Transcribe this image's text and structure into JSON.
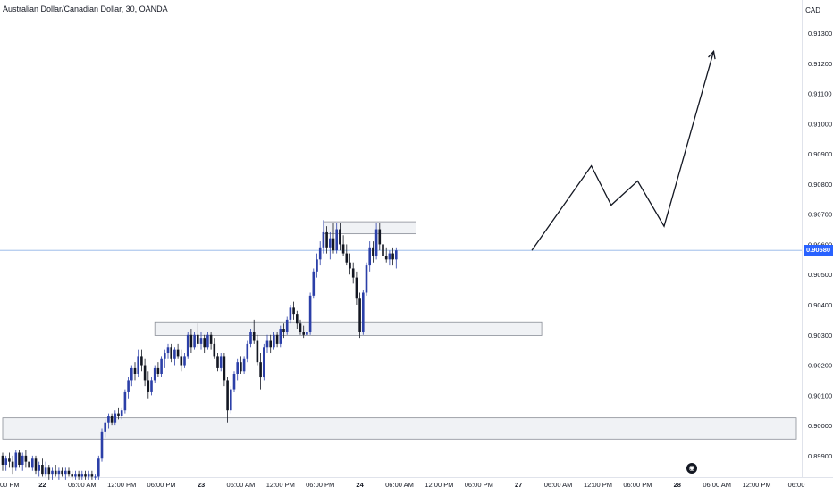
{
  "title": "Australian Dollar/Canadian Dollar, 30, OANDA",
  "currency": "CAD",
  "last_price_label": "0.90580",
  "colors": {
    "up_candle": "#2b3fa8",
    "down_candle": "#131722",
    "zone_fill": "#eceff3",
    "zone_stroke": "#8a8e97",
    "price_line": "#90b4e6",
    "price_tag": "#2962ff"
  },
  "chart_data": {
    "type": "candlestick",
    "symbol": "AUDCAD",
    "interval": "30",
    "ylim": [
      0.8987,
      0.9138
    ],
    "y_ticks": [
      "0.91300",
      "0.91200",
      "0.91100",
      "0.91000",
      "0.90900",
      "0.90800",
      "0.90700",
      "0.90600",
      "0.90500",
      "0.90400",
      "0.90300",
      "0.90200",
      "0.90100",
      "0.90000",
      "0.89900"
    ],
    "y_tick_values": [
      0.913,
      0.912,
      0.911,
      0.91,
      0.909,
      0.908,
      0.907,
      0.906,
      0.905,
      0.904,
      0.903,
      0.902,
      0.901,
      0.9,
      0.899
    ],
    "x_ticks": [
      "00 PM",
      "22",
      "06:00 AM",
      "12:00 PM",
      "06:00 PM",
      "23",
      "06:00 AM",
      "12:00 PM",
      "06:00 PM",
      "24",
      "06:00 AM",
      "12:00 PM",
      "06:00 PM",
      "27",
      "06:00 AM",
      "12:00 PM",
      "06:00 PM",
      "28",
      "06:00 AM",
      "12:00 PM",
      "06:00"
    ],
    "x_tick_index": [
      0,
      12,
      24,
      36,
      48,
      60,
      72,
      84,
      96,
      108,
      120,
      132,
      144,
      156,
      168,
      180,
      192,
      204,
      216,
      228,
      240
    ],
    "candles": [
      {
        "o": 0.899,
        "h": 0.8991,
        "l": 0.8985,
        "c": 0.8987
      },
      {
        "o": 0.8987,
        "h": 0.899,
        "l": 0.8985,
        "c": 0.8989
      },
      {
        "o": 0.8989,
        "h": 0.8991,
        "l": 0.8986,
        "c": 0.8988
      },
      {
        "o": 0.8988,
        "h": 0.899,
        "l": 0.8984,
        "c": 0.8986
      },
      {
        "o": 0.8986,
        "h": 0.8992,
        "l": 0.8985,
        "c": 0.8991
      },
      {
        "o": 0.8991,
        "h": 0.8992,
        "l": 0.8986,
        "c": 0.8987
      },
      {
        "o": 0.8987,
        "h": 0.8991,
        "l": 0.8985,
        "c": 0.899
      },
      {
        "o": 0.899,
        "h": 0.8992,
        "l": 0.8986,
        "c": 0.8988
      },
      {
        "o": 0.8988,
        "h": 0.8989,
        "l": 0.8984,
        "c": 0.8986
      },
      {
        "o": 0.8986,
        "h": 0.899,
        "l": 0.8985,
        "c": 0.8989
      },
      {
        "o": 0.8989,
        "h": 0.899,
        "l": 0.8984,
        "c": 0.8985
      },
      {
        "o": 0.8985,
        "h": 0.8988,
        "l": 0.8983,
        "c": 0.8987
      },
      {
        "o": 0.8987,
        "h": 0.8989,
        "l": 0.8983,
        "c": 0.8984
      },
      {
        "o": 0.8984,
        "h": 0.8988,
        "l": 0.8983,
        "c": 0.8986
      },
      {
        "o": 0.8986,
        "h": 0.8987,
        "l": 0.8982,
        "c": 0.8984
      },
      {
        "o": 0.8984,
        "h": 0.8986,
        "l": 0.8982,
        "c": 0.8985
      },
      {
        "o": 0.8985,
        "h": 0.8987,
        "l": 0.8983,
        "c": 0.8984
      },
      {
        "o": 0.8984,
        "h": 0.8986,
        "l": 0.8982,
        "c": 0.8985
      },
      {
        "o": 0.8985,
        "h": 0.8986,
        "l": 0.8983,
        "c": 0.8984
      },
      {
        "o": 0.8984,
        "h": 0.8986,
        "l": 0.8982,
        "c": 0.8985
      },
      {
        "o": 0.8985,
        "h": 0.8986,
        "l": 0.8983,
        "c": 0.8984
      },
      {
        "o": 0.8984,
        "h": 0.8985,
        "l": 0.8982,
        "c": 0.8983
      },
      {
        "o": 0.8983,
        "h": 0.8985,
        "l": 0.8982,
        "c": 0.8984
      },
      {
        "o": 0.8984,
        "h": 0.8985,
        "l": 0.8982,
        "c": 0.8983
      },
      {
        "o": 0.8983,
        "h": 0.8985,
        "l": 0.8982,
        "c": 0.8984
      },
      {
        "o": 0.8984,
        "h": 0.8985,
        "l": 0.8982,
        "c": 0.8983
      },
      {
        "o": 0.8983,
        "h": 0.8985,
        "l": 0.8982,
        "c": 0.8984
      },
      {
        "o": 0.8984,
        "h": 0.8985,
        "l": 0.8982,
        "c": 0.8983
      },
      {
        "o": 0.8983,
        "h": 0.8984,
        "l": 0.8982,
        "c": 0.8983
      },
      {
        "o": 0.8983,
        "h": 0.899,
        "l": 0.8982,
        "c": 0.8989
      },
      {
        "o": 0.8989,
        "h": 0.8999,
        "l": 0.8988,
        "c": 0.8998
      },
      {
        "o": 0.8998,
        "h": 0.9002,
        "l": 0.8996,
        "c": 0.9001
      },
      {
        "o": 0.9001,
        "h": 0.9004,
        "l": 0.8999,
        "c": 0.9003
      },
      {
        "o": 0.9003,
        "h": 0.9004,
        "l": 0.9,
        "c": 0.9001
      },
      {
        "o": 0.9001,
        "h": 0.9005,
        "l": 0.9,
        "c": 0.9004
      },
      {
        "o": 0.9004,
        "h": 0.9006,
        "l": 0.9002,
        "c": 0.9003
      },
      {
        "o": 0.9003,
        "h": 0.9006,
        "l": 0.9002,
        "c": 0.9005
      },
      {
        "o": 0.9005,
        "h": 0.9012,
        "l": 0.9004,
        "c": 0.9011
      },
      {
        "o": 0.9011,
        "h": 0.9016,
        "l": 0.9009,
        "c": 0.9015
      },
      {
        "o": 0.9015,
        "h": 0.902,
        "l": 0.9013,
        "c": 0.9019
      },
      {
        "o": 0.9019,
        "h": 0.9021,
        "l": 0.9015,
        "c": 0.9017
      },
      {
        "o": 0.9017,
        "h": 0.9025,
        "l": 0.9016,
        "c": 0.9023
      },
      {
        "o": 0.9023,
        "h": 0.9025,
        "l": 0.9018,
        "c": 0.902
      },
      {
        "o": 0.902,
        "h": 0.9022,
        "l": 0.9013,
        "c": 0.9015
      },
      {
        "o": 0.9015,
        "h": 0.9018,
        "l": 0.9009,
        "c": 0.9011
      },
      {
        "o": 0.9011,
        "h": 0.9016,
        "l": 0.901,
        "c": 0.9015
      },
      {
        "o": 0.9015,
        "h": 0.902,
        "l": 0.9014,
        "c": 0.9019
      },
      {
        "o": 0.9019,
        "h": 0.9021,
        "l": 0.9016,
        "c": 0.9017
      },
      {
        "o": 0.9017,
        "h": 0.9023,
        "l": 0.9016,
        "c": 0.9022
      },
      {
        "o": 0.9022,
        "h": 0.9025,
        "l": 0.9019,
        "c": 0.9024
      },
      {
        "o": 0.9024,
        "h": 0.9027,
        "l": 0.9022,
        "c": 0.9026
      },
      {
        "o": 0.9026,
        "h": 0.9027,
        "l": 0.9021,
        "c": 0.9022
      },
      {
        "o": 0.9022,
        "h": 0.9026,
        "l": 0.902,
        "c": 0.9025
      },
      {
        "o": 0.9025,
        "h": 0.9027,
        "l": 0.9022,
        "c": 0.9023
      },
      {
        "o": 0.9023,
        "h": 0.9025,
        "l": 0.9018,
        "c": 0.902
      },
      {
        "o": 0.902,
        "h": 0.9024,
        "l": 0.9019,
        "c": 0.9023
      },
      {
        "o": 0.9023,
        "h": 0.9031,
        "l": 0.9022,
        "c": 0.903
      },
      {
        "o": 0.903,
        "h": 0.9032,
        "l": 0.9024,
        "c": 0.9026
      },
      {
        "o": 0.9026,
        "h": 0.9031,
        "l": 0.9025,
        "c": 0.903
      },
      {
        "o": 0.903,
        "h": 0.9034,
        "l": 0.9026,
        "c": 0.9027
      },
      {
        "o": 0.9027,
        "h": 0.9031,
        "l": 0.9025,
        "c": 0.9029
      },
      {
        "o": 0.9029,
        "h": 0.903,
        "l": 0.9024,
        "c": 0.9026
      },
      {
        "o": 0.9026,
        "h": 0.9031,
        "l": 0.9025,
        "c": 0.903
      },
      {
        "o": 0.903,
        "h": 0.9031,
        "l": 0.9025,
        "c": 0.9027
      },
      {
        "o": 0.9027,
        "h": 0.9029,
        "l": 0.9022,
        "c": 0.9023
      },
      {
        "o": 0.9023,
        "h": 0.9024,
        "l": 0.9018,
        "c": 0.9019
      },
      {
        "o": 0.9019,
        "h": 0.9024,
        "l": 0.9018,
        "c": 0.9023
      },
      {
        "o": 0.9023,
        "h": 0.9024,
        "l": 0.9013,
        "c": 0.9015
      },
      {
        "o": 0.9015,
        "h": 0.9016,
        "l": 0.9001,
        "c": 0.9005
      },
      {
        "o": 0.9005,
        "h": 0.9013,
        "l": 0.9004,
        "c": 0.9012
      },
      {
        "o": 0.9012,
        "h": 0.9018,
        "l": 0.9011,
        "c": 0.9017
      },
      {
        "o": 0.9017,
        "h": 0.9022,
        "l": 0.9015,
        "c": 0.9021
      },
      {
        "o": 0.9021,
        "h": 0.9023,
        "l": 0.9017,
        "c": 0.9018
      },
      {
        "o": 0.9018,
        "h": 0.9023,
        "l": 0.9017,
        "c": 0.9022
      },
      {
        "o": 0.9022,
        "h": 0.9028,
        "l": 0.9021,
        "c": 0.9027
      },
      {
        "o": 0.9027,
        "h": 0.9032,
        "l": 0.9026,
        "c": 0.9031
      },
      {
        "o": 0.9031,
        "h": 0.9035,
        "l": 0.9027,
        "c": 0.9028
      },
      {
        "o": 0.9028,
        "h": 0.903,
        "l": 0.902,
        "c": 0.9021
      },
      {
        "o": 0.9021,
        "h": 0.9024,
        "l": 0.9012,
        "c": 0.9016
      },
      {
        "o": 0.9016,
        "h": 0.9027,
        "l": 0.9015,
        "c": 0.9026
      },
      {
        "o": 0.9026,
        "h": 0.903,
        "l": 0.9024,
        "c": 0.9028
      },
      {
        "o": 0.9028,
        "h": 0.903,
        "l": 0.9024,
        "c": 0.9026
      },
      {
        "o": 0.9026,
        "h": 0.9031,
        "l": 0.9025,
        "c": 0.903
      },
      {
        "o": 0.903,
        "h": 0.9031,
        "l": 0.9026,
        "c": 0.9027
      },
      {
        "o": 0.9027,
        "h": 0.9033,
        "l": 0.9026,
        "c": 0.9032
      },
      {
        "o": 0.9032,
        "h": 0.9034,
        "l": 0.9029,
        "c": 0.9031
      },
      {
        "o": 0.9031,
        "h": 0.9036,
        "l": 0.903,
        "c": 0.9035
      },
      {
        "o": 0.9035,
        "h": 0.904,
        "l": 0.9034,
        "c": 0.9039
      },
      {
        "o": 0.9039,
        "h": 0.9041,
        "l": 0.9035,
        "c": 0.9037
      },
      {
        "o": 0.9037,
        "h": 0.9038,
        "l": 0.9032,
        "c": 0.9034
      },
      {
        "o": 0.9034,
        "h": 0.9035,
        "l": 0.903,
        "c": 0.9031
      },
      {
        "o": 0.9031,
        "h": 0.9033,
        "l": 0.9029,
        "c": 0.903
      },
      {
        "o": 0.903,
        "h": 0.9032,
        "l": 0.9028,
        "c": 0.9031
      },
      {
        "o": 0.9031,
        "h": 0.9044,
        "l": 0.903,
        "c": 0.9043
      },
      {
        "o": 0.9043,
        "h": 0.9052,
        "l": 0.9042,
        "c": 0.9051
      },
      {
        "o": 0.9051,
        "h": 0.9057,
        "l": 0.9049,
        "c": 0.9055
      },
      {
        "o": 0.9055,
        "h": 0.9061,
        "l": 0.9053,
        "c": 0.9059
      },
      {
        "o": 0.9059,
        "h": 0.9068,
        "l": 0.9057,
        "c": 0.9064
      },
      {
        "o": 0.9064,
        "h": 0.9066,
        "l": 0.9057,
        "c": 0.9059
      },
      {
        "o": 0.9059,
        "h": 0.9064,
        "l": 0.9055,
        "c": 0.9062
      },
      {
        "o": 0.9062,
        "h": 0.9067,
        "l": 0.9057,
        "c": 0.9058
      },
      {
        "o": 0.9058,
        "h": 0.9067,
        "l": 0.9057,
        "c": 0.9065
      },
      {
        "o": 0.9065,
        "h": 0.9067,
        "l": 0.9058,
        "c": 0.906
      },
      {
        "o": 0.906,
        "h": 0.9063,
        "l": 0.9056,
        "c": 0.9057
      },
      {
        "o": 0.9057,
        "h": 0.906,
        "l": 0.9053,
        "c": 0.9054
      },
      {
        "o": 0.9054,
        "h": 0.9057,
        "l": 0.905,
        "c": 0.9052
      },
      {
        "o": 0.9052,
        "h": 0.9054,
        "l": 0.9047,
        "c": 0.9049
      },
      {
        "o": 0.9049,
        "h": 0.9051,
        "l": 0.904,
        "c": 0.9042
      },
      {
        "o": 0.9042,
        "h": 0.9044,
        "l": 0.9029,
        "c": 0.9031
      },
      {
        "o": 0.9031,
        "h": 0.9045,
        "l": 0.903,
        "c": 0.9044
      },
      {
        "o": 0.9044,
        "h": 0.9054,
        "l": 0.9043,
        "c": 0.9053
      },
      {
        "o": 0.9053,
        "h": 0.9061,
        "l": 0.9051,
        "c": 0.9059
      },
      {
        "o": 0.9059,
        "h": 0.9061,
        "l": 0.9054,
        "c": 0.9056
      },
      {
        "o": 0.9056,
        "h": 0.9067,
        "l": 0.9055,
        "c": 0.9065
      },
      {
        "o": 0.9065,
        "h": 0.9067,
        "l": 0.9058,
        "c": 0.906
      },
      {
        "o": 0.906,
        "h": 0.9061,
        "l": 0.9055,
        "c": 0.9056
      },
      {
        "o": 0.9056,
        "h": 0.9059,
        "l": 0.9054,
        "c": 0.9055
      },
      {
        "o": 0.9055,
        "h": 0.9058,
        "l": 0.9053,
        "c": 0.9057
      },
      {
        "o": 0.9057,
        "h": 0.9059,
        "l": 0.9053,
        "c": 0.9055
      },
      {
        "o": 0.9055,
        "h": 0.9059,
        "l": 0.9052,
        "c": 0.9058
      }
    ],
    "zones": [
      {
        "top": 0.90675,
        "bottom": 0.90635,
        "start": 97,
        "end": 125
      },
      {
        "top": 0.90343,
        "bottom": 0.90298,
        "start": 46,
        "end": 163
      },
      {
        "top": 0.90025,
        "bottom": 0.89955,
        "start": 0,
        "end": 240
      }
    ],
    "projection_path": [
      {
        "i": 160,
        "p": 0.9058
      },
      {
        "i": 178,
        "p": 0.9086
      },
      {
        "i": 184,
        "p": 0.9073
      },
      {
        "i": 192,
        "p": 0.9081
      },
      {
        "i": 200,
        "p": 0.9066
      },
      {
        "i": 215,
        "p": 0.9124
      }
    ],
    "last_price": 0.9058
  }
}
